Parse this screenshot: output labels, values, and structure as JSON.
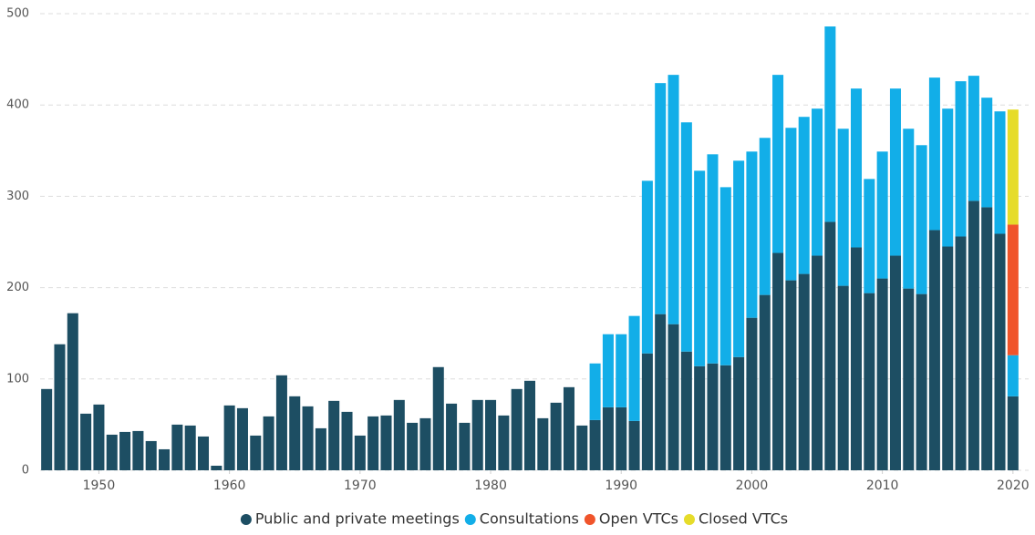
{
  "chart_data": {
    "type": "stacked_bar",
    "x": [
      1946,
      1947,
      1948,
      1949,
      1950,
      1951,
      1952,
      1953,
      1954,
      1955,
      1956,
      1957,
      1958,
      1959,
      1960,
      1961,
      1962,
      1963,
      1964,
      1965,
      1966,
      1967,
      1968,
      1969,
      1970,
      1971,
      1972,
      1973,
      1974,
      1975,
      1976,
      1977,
      1978,
      1979,
      1980,
      1981,
      1982,
      1983,
      1984,
      1985,
      1986,
      1987,
      1988,
      1989,
      1990,
      1991,
      1992,
      1993,
      1994,
      1995,
      1996,
      1997,
      1998,
      1999,
      2000,
      2001,
      2002,
      2003,
      2004,
      2005,
      2006,
      2007,
      2008,
      2009,
      2010,
      2011,
      2012,
      2013,
      2014,
      2015,
      2016,
      2017,
      2018,
      2019,
      2020
    ],
    "series": [
      {
        "name": "Public and private meetings",
        "color": "#1d4e63",
        "values": [
          89,
          138,
          172,
          62,
          72,
          39,
          42,
          43,
          32,
          23,
          50,
          49,
          37,
          5,
          71,
          68,
          38,
          59,
          104,
          81,
          70,
          46,
          76,
          64,
          38,
          59,
          60,
          77,
          52,
          57,
          113,
          73,
          52,
          77,
          77,
          60,
          89,
          98,
          57,
          74,
          91,
          49,
          55,
          69,
          69,
          54,
          128,
          171,
          160,
          130,
          114,
          117,
          115,
          124,
          167,
          192,
          238,
          208,
          215,
          235,
          272,
          202,
          244,
          194,
          210,
          235,
          199,
          193,
          263,
          245,
          256,
          295,
          288,
          259,
          81
        ]
      },
      {
        "name": "Consultations",
        "color": "#12aee8",
        "values": [
          null,
          null,
          null,
          null,
          null,
          null,
          null,
          null,
          null,
          null,
          null,
          null,
          null,
          null,
          null,
          null,
          null,
          null,
          null,
          null,
          null,
          null,
          null,
          null,
          null,
          null,
          null,
          null,
          null,
          null,
          null,
          null,
          null,
          null,
          null,
          null,
          null,
          null,
          null,
          null,
          null,
          null,
          62,
          80,
          80,
          115,
          189,
          253,
          273,
          251,
          214,
          229,
          195,
          215,
          182,
          172,
          195,
          167,
          172,
          161,
          214,
          172,
          174,
          125,
          139,
          183,
          175,
          163,
          167,
          151,
          170,
          137,
          120,
          134,
          45
        ]
      },
      {
        "name": "Open VTCs",
        "color": "#f0542b",
        "values": [
          null,
          null,
          null,
          null,
          null,
          null,
          null,
          null,
          null,
          null,
          null,
          null,
          null,
          null,
          null,
          null,
          null,
          null,
          null,
          null,
          null,
          null,
          null,
          null,
          null,
          null,
          null,
          null,
          null,
          null,
          null,
          null,
          null,
          null,
          null,
          null,
          null,
          null,
          null,
          null,
          null,
          null,
          null,
          null,
          null,
          null,
          null,
          null,
          null,
          null,
          null,
          null,
          null,
          null,
          null,
          null,
          null,
          null,
          null,
          null,
          null,
          null,
          null,
          null,
          null,
          null,
          null,
          null,
          null,
          null,
          null,
          null,
          null,
          null,
          143
        ]
      },
      {
        "name": "Closed VTCs",
        "color": "#e6dc2a",
        "values": [
          null,
          null,
          null,
          null,
          null,
          null,
          null,
          null,
          null,
          null,
          null,
          null,
          null,
          null,
          null,
          null,
          null,
          null,
          null,
          null,
          null,
          null,
          null,
          null,
          null,
          null,
          null,
          null,
          null,
          null,
          null,
          null,
          null,
          null,
          null,
          null,
          null,
          null,
          null,
          null,
          null,
          null,
          null,
          null,
          null,
          null,
          null,
          null,
          null,
          null,
          null,
          null,
          null,
          null,
          null,
          null,
          null,
          null,
          null,
          null,
          null,
          null,
          null,
          null,
          null,
          null,
          null,
          null,
          null,
          null,
          null,
          null,
          null,
          null,
          126
        ]
      }
    ],
    "xlim": [
      1945.5,
      2020.5
    ],
    "xticks": [
      1950,
      1960,
      1970,
      1980,
      1990,
      2000,
      2010,
      2020
    ],
    "ylim": [
      0,
      500
    ],
    "yticks": [
      0,
      100,
      200,
      300,
      400,
      500
    ],
    "grid": true,
    "legend": "bottom"
  }
}
